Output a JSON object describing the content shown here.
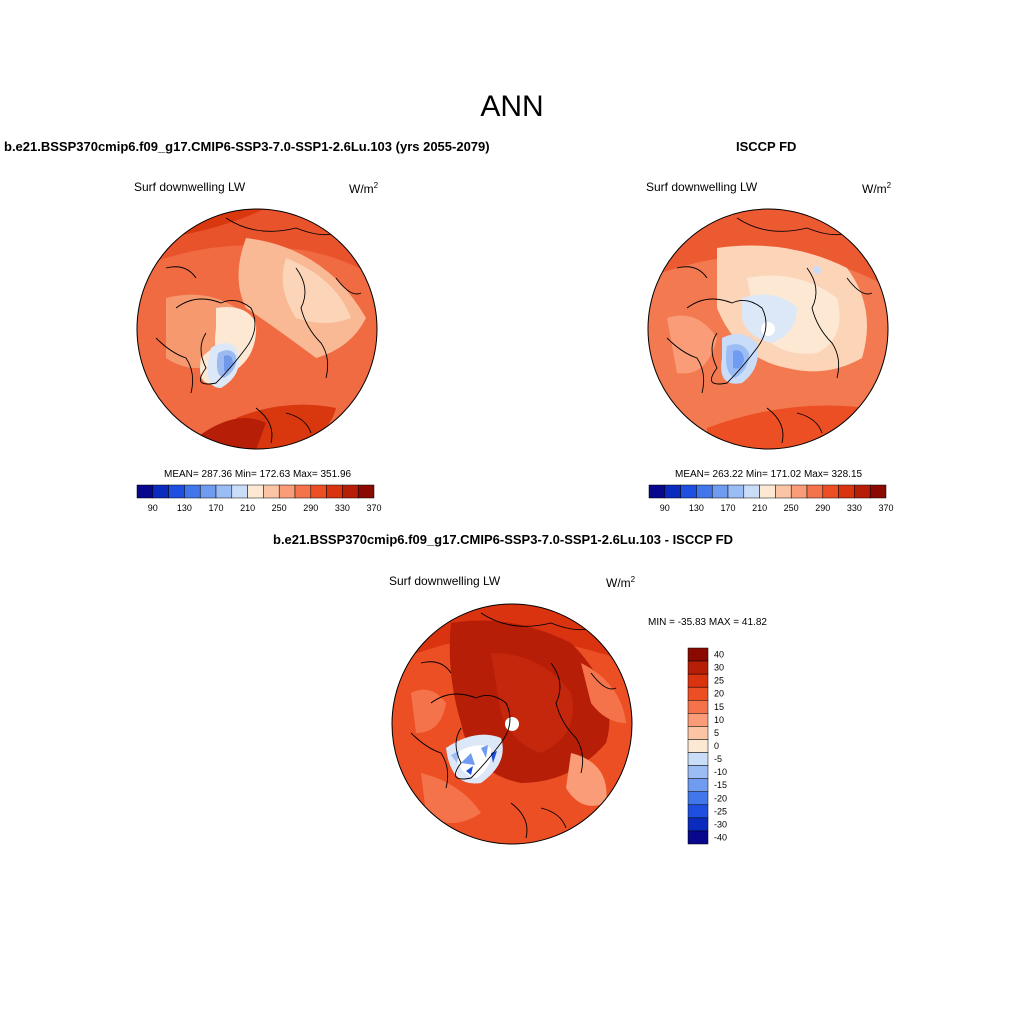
{
  "page_title": "ANN",
  "panels": [
    {
      "title": "b.e21.BSSP370cmip6.f09_g17.CMIP6-SSP3-7.0-SSP1-2.6Lu.103 (yrs 2055-2079)",
      "variable": "Surf downwelling LW",
      "units_base": "W/m",
      "units_sup": "2",
      "stats": "MEAN= 287.36  Min= 172.63  Max= 351.96"
    },
    {
      "title": "ISCCP FD",
      "variable": "Surf downwelling LW",
      "units_base": "W/m",
      "units_sup": "2",
      "stats": "MEAN= 263.22  Min= 171.02  Max= 328.15"
    },
    {
      "title": "b.e21.BSSP370cmip6.f09_g17.CMIP6-SSP3-7.0-SSP1-2.6Lu.103 - ISCCP FD",
      "variable": "Surf downwelling LW",
      "units_base": "W/m",
      "units_sup": "2",
      "stats": "MIN = -35.83 MAX =  41.82"
    }
  ],
  "colorbar_abs": {
    "labels": [
      "90",
      "130",
      "170",
      "210",
      "250",
      "290",
      "330",
      "370"
    ],
    "colors": [
      "#08088c",
      "#0a2bbd",
      "#1f4fe0",
      "#4277eb",
      "#6f9bf0",
      "#9bbcf5",
      "#c9dcf8",
      "#fde8d4",
      "#fbc4a4",
      "#f99c77",
      "#f5734b",
      "#ec4f24",
      "#d93310",
      "#b71e08",
      "#8a0a02"
    ]
  },
  "colorbar_diff": {
    "labels": [
      "40",
      "30",
      "25",
      "20",
      "15",
      "10",
      "5",
      "0",
      "-5",
      "-10",
      "-15",
      "-20",
      "-25",
      "-30",
      "-40"
    ],
    "colors": [
      "#8a0a02",
      "#b71e08",
      "#d93310",
      "#ec4f24",
      "#f5734b",
      "#f99c77",
      "#fbc4a4",
      "#fde8d4",
      "#c9dcf8",
      "#9bbcf5",
      "#6f9bf0",
      "#4277eb",
      "#1f4fe0",
      "#0a2bbd",
      "#08088c"
    ]
  }
}
